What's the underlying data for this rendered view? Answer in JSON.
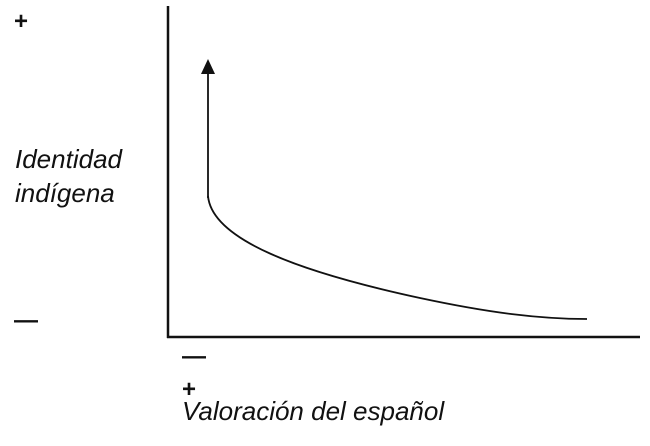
{
  "diagram": {
    "y_axis": {
      "label_line1": "Identidad",
      "label_line2": "indígena",
      "plus": "+",
      "minus": "—"
    },
    "x_axis": {
      "label": "Valoración del español",
      "plus": "+",
      "minus": "—"
    },
    "colors": {
      "line": "#111111",
      "background": "#ffffff"
    }
  }
}
